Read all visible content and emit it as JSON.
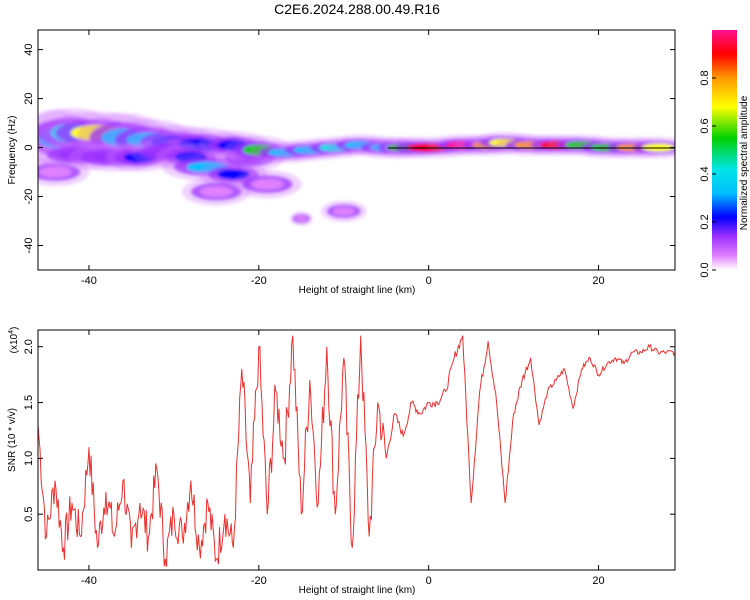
{
  "title": "C2E6.2024.288.00.49.R16",
  "chart_data": [
    {
      "type": "heatmap",
      "xlabel": "Height of straight line (km)",
      "ylabel": "Frequency (Hz)",
      "xlim": [
        -46,
        29
      ],
      "ylim": [
        -50,
        48
      ],
      "x_ticks": [
        -40,
        -20,
        0,
        20
      ],
      "y_ticks": [
        40,
        20,
        0,
        -20,
        -40
      ],
      "colorbar": {
        "label": "Normalized spectral amplitude",
        "range": [
          0,
          1
        ],
        "ticks": [
          "0.0",
          "0.2",
          "0.4",
          "0.6",
          "0.8"
        ],
        "colors": [
          "#ffffff",
          "#e080ff",
          "#9b30ff",
          "#0000ff",
          "#00bfff",
          "#00e5e5",
          "#00d000",
          "#ffff00",
          "#ff9900",
          "#ff0000",
          "#ff1090"
        ]
      },
      "blobs": [
        {
          "x": -44,
          "y": 4,
          "w": 3,
          "h": 8,
          "v": 0.35
        },
        {
          "x": -42,
          "y": 6,
          "w": 4,
          "h": 7,
          "v": 0.45
        },
        {
          "x": -39,
          "y": 6,
          "w": 5,
          "h": 6,
          "v": 0.7
        },
        {
          "x": -36,
          "y": 4,
          "w": 4,
          "h": 7,
          "v": 0.4
        },
        {
          "x": -33,
          "y": 3,
          "w": 4,
          "h": 6,
          "v": 0.35
        },
        {
          "x": -30,
          "y": 2,
          "w": 4,
          "h": 5,
          "v": 0.3
        },
        {
          "x": -27,
          "y": 1,
          "w": 4,
          "h": 5,
          "v": 0.28
        },
        {
          "x": -44,
          "y": -10,
          "w": 3,
          "h": 4,
          "v": 0.1
        },
        {
          "x": -41,
          "y": -3,
          "w": 4,
          "h": 4,
          "v": 0.18
        },
        {
          "x": -37,
          "y": -4,
          "w": 4,
          "h": 4,
          "v": 0.15
        },
        {
          "x": -34,
          "y": -4,
          "w": 3,
          "h": 4,
          "v": 0.3
        },
        {
          "x": -31,
          "y": -2,
          "w": 3,
          "h": 4,
          "v": 0.2
        },
        {
          "x": -28,
          "y": -4,
          "w": 3,
          "h": 4,
          "v": 0.25
        },
        {
          "x": -26,
          "y": -8,
          "w": 4,
          "h": 4,
          "v": 0.35
        },
        {
          "x": -23,
          "y": -11,
          "w": 3,
          "h": 4,
          "v": 0.3
        },
        {
          "x": -25,
          "y": -18,
          "w": 3,
          "h": 4,
          "v": 0.1
        },
        {
          "x": -19,
          "y": -15,
          "w": 3,
          "h": 4,
          "v": 0.1
        },
        {
          "x": -21,
          "y": -4,
          "w": 3,
          "h": 4,
          "v": 0.22
        },
        {
          "x": -23,
          "y": 1,
          "w": 3,
          "h": 4,
          "v": 0.25
        },
        {
          "x": -20,
          "y": -1,
          "w": 3,
          "h": 4,
          "v": 0.55
        },
        {
          "x": -17,
          "y": -2,
          "w": 3,
          "h": 3,
          "v": 0.35
        },
        {
          "x": -14,
          "y": -1,
          "w": 3,
          "h": 3,
          "v": 0.4
        },
        {
          "x": -11,
          "y": 0,
          "w": 3,
          "h": 3,
          "v": 0.45
        },
        {
          "x": -8,
          "y": 1,
          "w": 3,
          "h": 3,
          "v": 0.35
        },
        {
          "x": -5,
          "y": 0,
          "w": 3,
          "h": 3,
          "v": 0.4
        },
        {
          "x": -3,
          "y": 0,
          "w": 3,
          "h": 3,
          "v": 0.6
        },
        {
          "x": 0,
          "y": 0,
          "w": 4,
          "h": 3,
          "v": 0.9
        },
        {
          "x": 4,
          "y": 1,
          "w": 3,
          "h": 3,
          "v": 0.95
        },
        {
          "x": 7,
          "y": 1,
          "w": 3,
          "h": 3,
          "v": 0.8
        },
        {
          "x": 9,
          "y": 2,
          "w": 3,
          "h": 3,
          "v": 0.7
        },
        {
          "x": 12,
          "y": 1,
          "w": 3,
          "h": 3,
          "v": 0.75
        },
        {
          "x": 15,
          "y": 1,
          "w": 3,
          "h": 3,
          "v": 0.9
        },
        {
          "x": 18,
          "y": 1,
          "w": 3,
          "h": 3,
          "v": 0.55
        },
        {
          "x": 21,
          "y": 0,
          "w": 3,
          "h": 3,
          "v": 0.6
        },
        {
          "x": 24,
          "y": 0,
          "w": 3,
          "h": 3,
          "v": 0.8
        },
        {
          "x": 27,
          "y": 0,
          "w": 3,
          "h": 3,
          "v": 0.65
        },
        {
          "x": -10,
          "y": -26,
          "w": 2,
          "h": 3,
          "v": 0.12
        },
        {
          "x": -15,
          "y": -29,
          "w": 1,
          "h": 2,
          "v": 0.05
        }
      ]
    },
    {
      "type": "line",
      "xlabel": "Height of straight line (km)",
      "ylabel": "SNR (10 * v/v)",
      "y_multiplier": "(x10",
      "y_multiplier_exp": "4",
      "xlim": [
        -46,
        29
      ],
      "ylim": [
        0,
        2.15
      ],
      "x_ticks": [
        -40,
        -20,
        0,
        20
      ],
      "y_ticks": [
        "0.5",
        "1.0",
        "1.5",
        "2.0"
      ],
      "color": "#e83030",
      "x": [
        -46,
        -45,
        -44,
        -43,
        -42,
        -41,
        -40,
        -39,
        -38,
        -37,
        -36,
        -35,
        -34,
        -33,
        -32,
        -31,
        -30,
        -29,
        -28,
        -27,
        -26,
        -25,
        -24,
        -23,
        -22,
        -21,
        -20,
        -19,
        -18,
        -17,
        -16,
        -15,
        -14,
        -13,
        -12,
        -11,
        -10,
        -9,
        -8,
        -7,
        -6,
        -5,
        -4,
        -3,
        -2,
        -1,
        0,
        1,
        2,
        3,
        4,
        5,
        6,
        7,
        8,
        9,
        10,
        11,
        12,
        13,
        14,
        15,
        16,
        17,
        18,
        19,
        20,
        21,
        22,
        23,
        24,
        25,
        26,
        27,
        28,
        29
      ],
      "values": [
        1.3,
        0.3,
        0.8,
        0.2,
        0.6,
        0.3,
        1.1,
        0.2,
        0.7,
        0.3,
        0.8,
        0.2,
        0.6,
        0.3,
        0.9,
        0.1,
        0.5,
        0.3,
        0.8,
        0.2,
        0.6,
        0.1,
        0.5,
        0.2,
        1.8,
        0.6,
        2.0,
        0.5,
        1.6,
        1.0,
        2.1,
        0.5,
        1.7,
        0.6,
        2.0,
        0.5,
        1.9,
        0.2,
        2.1,
        0.3,
        1.5,
        1.0,
        1.4,
        1.2,
        1.5,
        1.4,
        1.5,
        1.5,
        1.6,
        1.9,
        2.1,
        0.6,
        1.6,
        2.05,
        1.5,
        0.6,
        1.4,
        1.7,
        1.9,
        1.3,
        1.6,
        1.7,
        1.8,
        1.45,
        1.8,
        1.9,
        1.75,
        1.85,
        1.9,
        1.85,
        1.95,
        1.95,
        2.0,
        1.95,
        1.95,
        1.95
      ]
    }
  ]
}
